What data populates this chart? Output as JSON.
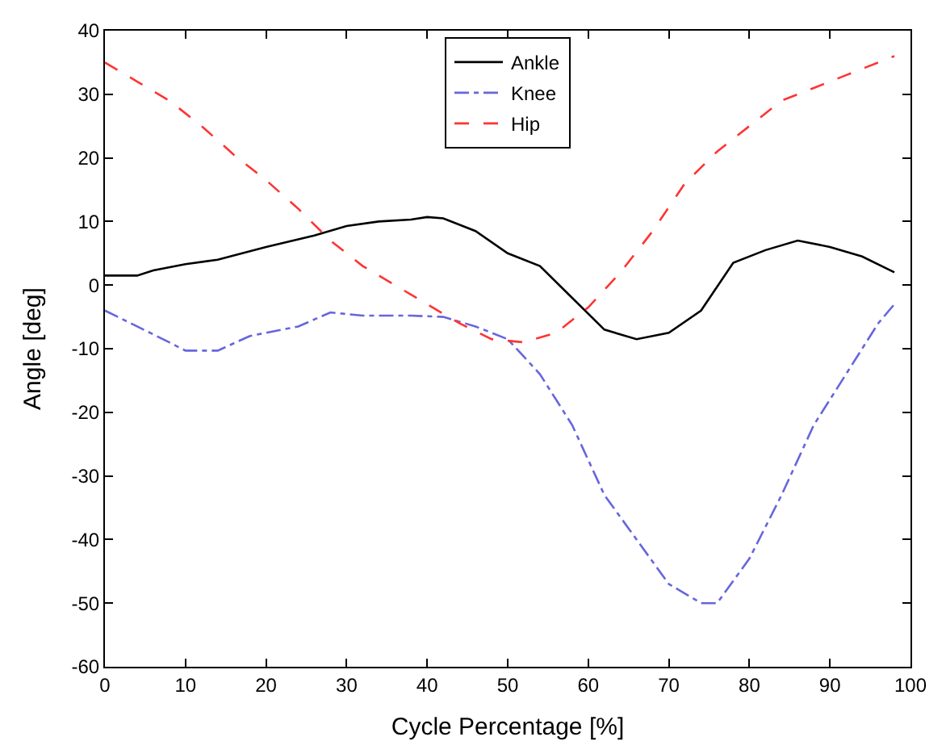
{
  "chart_data": {
    "type": "line",
    "xlabel": "Cycle Percentage [%]",
    "ylabel": "Angle [deg]",
    "xlim": [
      0,
      100
    ],
    "ylim": [
      -60,
      40
    ],
    "xticks": [
      0,
      10,
      20,
      30,
      40,
      50,
      60,
      70,
      80,
      90,
      100
    ],
    "yticks": [
      -60,
      -50,
      -40,
      -30,
      -20,
      -10,
      0,
      10,
      20,
      30,
      40
    ],
    "grid": false,
    "legend": "top",
    "marker": "none",
    "series": [
      {
        "name": "Ankle",
        "color": "#000000",
        "line_style": "solid",
        "x": [
          0,
          4,
          6,
          10,
          14,
          20,
          26,
          30,
          34,
          38,
          40,
          42,
          46,
          50,
          54,
          58,
          62,
          66,
          70,
          74,
          78,
          82,
          86,
          90,
          94,
          98
        ],
        "values": [
          1.5,
          1.5,
          2.3,
          3.3,
          4,
          6,
          7.8,
          9.3,
          10,
          10.3,
          10.7,
          10.5,
          8.5,
          5,
          3,
          -2,
          -7,
          -8.5,
          -7.5,
          -4,
          3.5,
          5.5,
          7,
          6,
          4.5,
          2
        ]
      },
      {
        "name": "Knee",
        "color": "#6666dd",
        "line_style": "dashdot",
        "x": [
          0,
          4,
          8,
          10,
          14,
          18,
          24,
          28,
          32,
          38,
          42,
          46,
          50,
          54,
          58,
          62,
          66,
          70,
          74,
          76,
          80,
          84,
          88,
          92,
          96,
          98
        ],
        "values": [
          -4,
          -6.5,
          -9,
          -10.3,
          -10.3,
          -8,
          -6.5,
          -4.3,
          -4.8,
          -4.8,
          -5,
          -6.5,
          -8.5,
          -14,
          -22,
          -33,
          -40,
          -47,
          -50,
          -50,
          -43,
          -33,
          -22,
          -14,
          -6,
          -3
        ]
      },
      {
        "name": "Hip",
        "color": "#ff3333",
        "line_style": "dashed",
        "x": [
          0,
          4,
          8,
          12,
          16,
          20,
          24,
          28,
          32,
          36,
          40,
          44,
          48,
          52,
          56,
          60,
          64,
          68,
          72,
          76,
          80,
          84,
          88,
          92,
          96,
          98
        ],
        "values": [
          35,
          32,
          29,
          25,
          20.5,
          16.5,
          12,
          7,
          3,
          0,
          -3,
          -6,
          -8.5,
          -9,
          -7.5,
          -3.5,
          2,
          8.5,
          16,
          21,
          25,
          29,
          31,
          33,
          35,
          36
        ]
      }
    ]
  }
}
